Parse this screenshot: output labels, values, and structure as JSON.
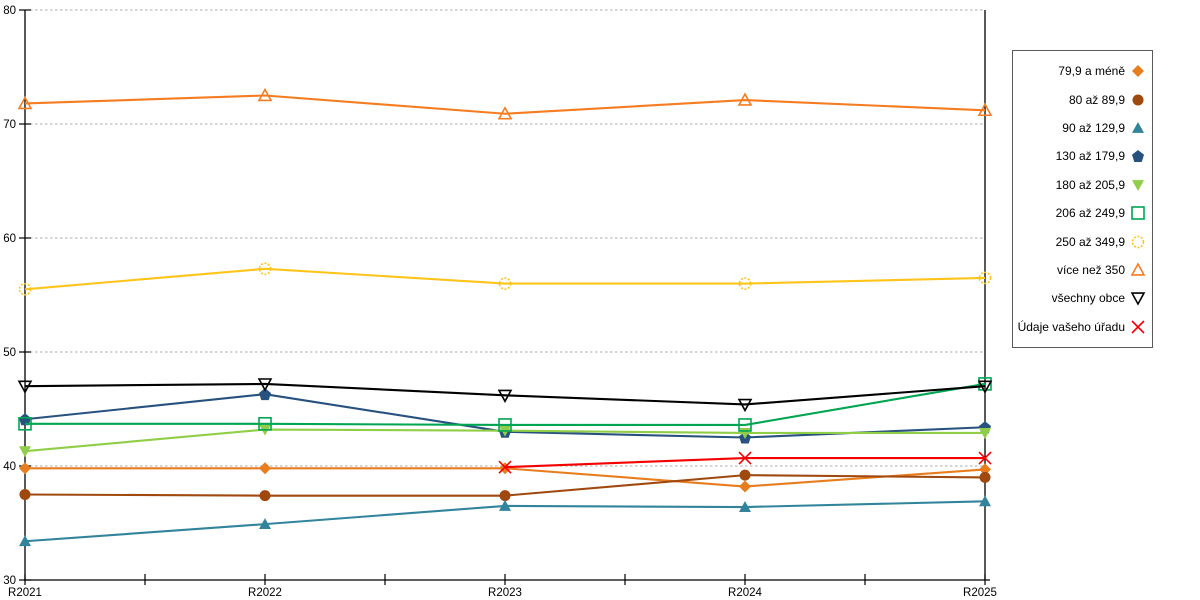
{
  "page": {
    "background": "#FFFFFF"
  },
  "axes": {
    "x_tick_labels": [
      "R2021",
      "R2022",
      "R2023",
      "R2024",
      "R2025"
    ],
    "y_tick_labels": [
      "30",
      "40",
      "50",
      "60",
      "70",
      "80"
    ]
  },
  "colors": {
    "axis": "#000000",
    "gridline": "#ABABAB",
    "legend_border": "#5A5A5A"
  },
  "chart_data": {
    "type": "line",
    "title": "",
    "xlabel": "",
    "ylabel": "",
    "categories": [
      "R2021",
      "R2022",
      "R2023",
      "R2024",
      "R2025"
    ],
    "ylim": [
      30,
      80
    ],
    "yticks": [
      30,
      40,
      50,
      60,
      70,
      80
    ],
    "grid": "horizontal dashed gridlines at 40,50,60,70,80",
    "legend_position": "right",
    "series": [
      {
        "name": "79,9 a méně",
        "color": "#E87D1E",
        "marker": "diamond",
        "marker_fill": "filled",
        "values": [
          39.8,
          39.8,
          39.8,
          38.2,
          39.7
        ]
      },
      {
        "name": "80 až 89,9",
        "color": "#A0490F",
        "marker": "circle",
        "marker_fill": "filled",
        "values": [
          37.5,
          37.4,
          37.4,
          39.2,
          39.0
        ]
      },
      {
        "name": "90 až 129,9",
        "color": "#31849B",
        "marker": "triangle-up",
        "marker_fill": "filled",
        "values": [
          33.4,
          34.9,
          36.5,
          36.4,
          36.9
        ]
      },
      {
        "name": "130 až 179,9",
        "color": "#27517E",
        "marker": "pentagon",
        "marker_fill": "filled",
        "values": [
          44.1,
          46.3,
          43.0,
          42.5,
          43.4
        ]
      },
      {
        "name": "180 až 205,9",
        "color": "#8FCE46",
        "marker": "triangle-down",
        "marker_fill": "filled",
        "values": [
          41.3,
          43.2,
          43.1,
          42.9,
          42.9
        ]
      },
      {
        "name": "206 až 249,9",
        "color": "#00A551",
        "marker": "square",
        "marker_fill": "open",
        "values": [
          43.7,
          43.7,
          43.6,
          43.6,
          47.2
        ]
      },
      {
        "name": "250 až 349,9",
        "color": "#FFC41A",
        "marker": "circle",
        "marker_fill": "open-dashed",
        "values": [
          55.5,
          57.3,
          56.0,
          56.0,
          56.5
        ]
      },
      {
        "name": "více než 350",
        "color": "#F57C20",
        "marker": "triangle-up",
        "marker_fill": "open",
        "values": [
          71.8,
          72.5,
          70.9,
          72.1,
          71.2
        ]
      },
      {
        "name": "všechny obce",
        "color": "#000000",
        "marker": "triangle-down",
        "marker_fill": "open",
        "values": [
          47.0,
          47.2,
          46.2,
          45.4,
          47.0
        ]
      },
      {
        "name": "Údaje vašeho úřadu",
        "color": "#F40000",
        "marker": "x",
        "marker_fill": "open",
        "values": [
          null,
          null,
          39.9,
          40.7,
          40.7
        ]
      }
    ]
  }
}
